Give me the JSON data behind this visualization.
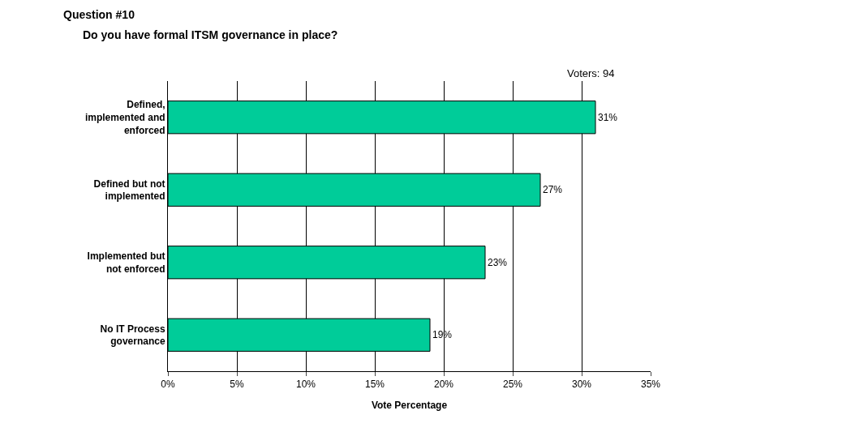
{
  "chart_data": {
    "type": "bar",
    "orientation": "horizontal",
    "title": "Question #10",
    "subtitle": "Do you have formal ITSM governance in place?",
    "xlabel": "Vote Percentage",
    "annotations": [
      "Voters: 94"
    ],
    "categories": [
      "Defined, implemented and enforced",
      "Defined but not implemented",
      "Implemented but not enforced",
      "No IT Process governance"
    ],
    "values": [
      31,
      27,
      23,
      19
    ],
    "value_labels": [
      "31%",
      "27%",
      "23%",
      "19%"
    ],
    "color": "#00cc99",
    "xlim": [
      0,
      35
    ],
    "xticks": [
      {
        "value": 0,
        "label": "0%"
      },
      {
        "value": 5,
        "label": "5%"
      },
      {
        "value": 10,
        "label": "10%"
      },
      {
        "value": 15,
        "label": "15%"
      },
      {
        "value": 20,
        "label": "20%"
      },
      {
        "value": 25,
        "label": "25%"
      },
      {
        "value": 30,
        "label": "30%"
      },
      {
        "value": 35,
        "label": "35%"
      }
    ],
    "grid": "x",
    "legend": false
  }
}
